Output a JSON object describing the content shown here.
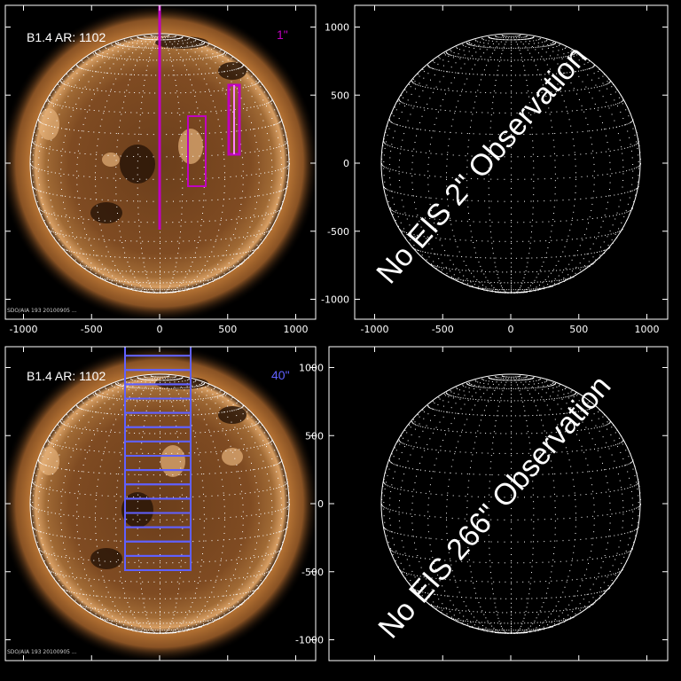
{
  "panels": {
    "top_left": {
      "label": "B1.4 AR: 1102",
      "exposure": "1\"",
      "exposure_color": "#c000c0",
      "footer": "SDO/AIA 193 20100905 ..."
    },
    "top_right": {
      "message": "No EIS 2\" Observation"
    },
    "bottom_left": {
      "label": "B1.4 AR: 1102",
      "exposure": "40\"",
      "exposure_color": "#6060ff",
      "footer": "SDO/AIA 193 20100905 ..."
    },
    "bottom_right": {
      "message": "No EIS 266\" Observation"
    }
  },
  "axes": {
    "x_ticks": [
      "-1000",
      "-500",
      "0",
      "500",
      "1000"
    ],
    "y_ticks": [
      "1000",
      "500",
      "0",
      "-500",
      "-1000"
    ],
    "x_values": [
      -1000,
      -500,
      0,
      500,
      1000
    ],
    "y_values": [
      1000,
      500,
      0,
      -500,
      -1000
    ]
  },
  "colors": {
    "background": "#000000",
    "frame": "#ffffff",
    "sun_core": "#8a5424",
    "sun_limb": "#c98d48",
    "magenta": "#c000c0",
    "blue": "#6060ff"
  }
}
